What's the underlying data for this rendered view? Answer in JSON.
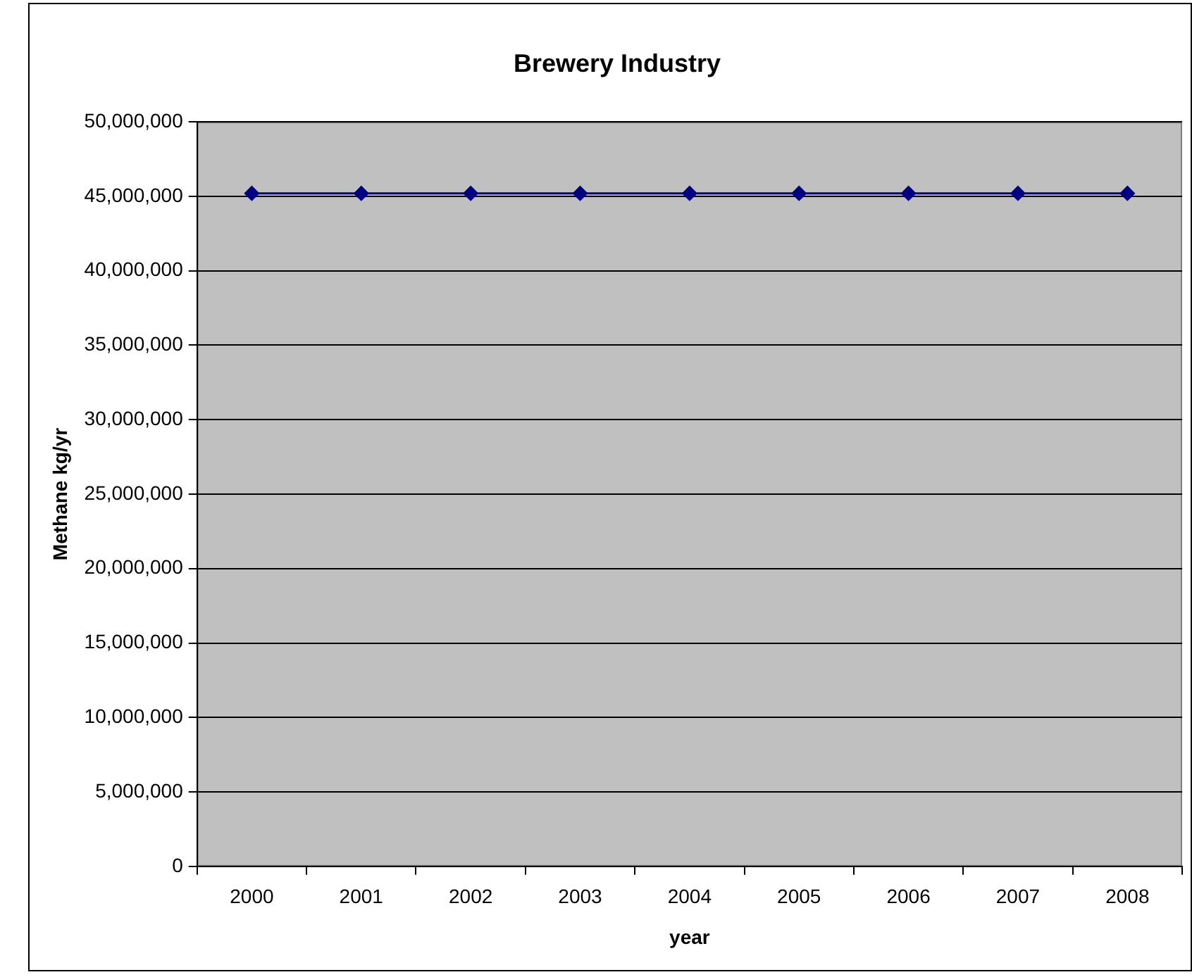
{
  "chart_data": {
    "type": "line",
    "title": "Brewery Industry",
    "xlabel": "year",
    "ylabel": "Methane kg/yr",
    "categories": [
      "2000",
      "2001",
      "2002",
      "2003",
      "2004",
      "2005",
      "2006",
      "2007",
      "2008"
    ],
    "series": [
      {
        "color": "#000080",
        "values": [
          45200000,
          45200000,
          45200000,
          45200000,
          45200000,
          45200000,
          45200000,
          45200000,
          45200000
        ]
      }
    ],
    "ylim": [
      0,
      50000000
    ],
    "yticks": [
      0,
      {
        "value": 5000000,
        "label": "5,000,000"
      },
      {
        "value": 10000000,
        "label": "10,000,000"
      },
      {
        "value": 15000000,
        "label": "15,000,000"
      },
      {
        "value": 20000000,
        "label": "20,000,000"
      },
      {
        "value": 25000000,
        "label": "25,000,000"
      },
      {
        "value": 30000000,
        "label": "30,000,000"
      },
      {
        "value": 35000000,
        "label": "35,000,000"
      },
      {
        "value": 40000000,
        "label": "40,000,000"
      },
      {
        "value": 45000000,
        "label": "45,000,000"
      },
      {
        "value": 50000000,
        "label": "50,000,000"
      }
    ],
    "grid": "y",
    "legend": false,
    "marker": "diamond",
    "line_style": "solid"
  }
}
